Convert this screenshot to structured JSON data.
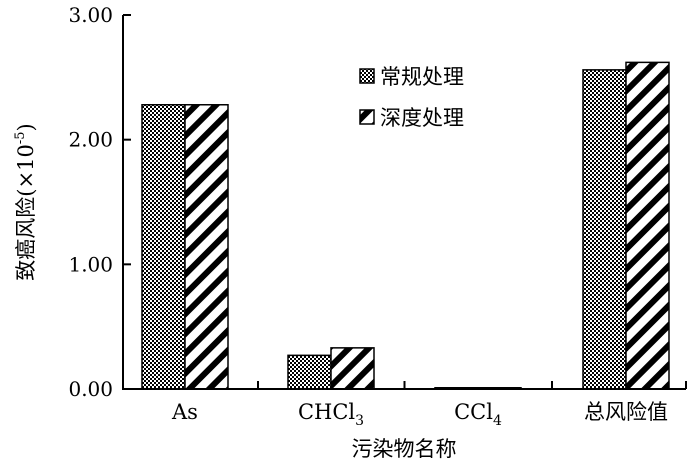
{
  "chart_data": {
    "type": "bar",
    "xlabel": "污染物名称",
    "ylabel": "致癌风险(×10",
    "ylabel_sup": "-5",
    "ylabel_close": ")",
    "ylim": [
      0,
      3
    ],
    "yticks": [
      "0.00",
      "1.00",
      "2.00",
      "3.00"
    ],
    "ytick_values": [
      0,
      1,
      2,
      3
    ],
    "categories": [
      {
        "main": "As",
        "sub": ""
      },
      {
        "main": "CHCl",
        "sub": "3"
      },
      {
        "main": "CCl",
        "sub": "4"
      },
      {
        "main": "总风险值",
        "sub": ""
      }
    ],
    "series": [
      {
        "name": "常规处理",
        "pattern": "checker",
        "values": [
          2.28,
          0.27,
          0.01,
          2.56
        ]
      },
      {
        "name": "深度处理",
        "pattern": "diagonal",
        "values": [
          2.28,
          0.33,
          0.01,
          2.62
        ]
      }
    ],
    "legend_position": "top-right",
    "grid": false,
    "colors": {
      "bar_stroke": "#000000",
      "pattern_fill": "#000000",
      "background": "#ffffff"
    }
  }
}
